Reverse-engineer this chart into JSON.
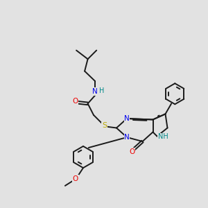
{
  "bg_color": "#e2e2e2",
  "bond_color": "#1a1a1a",
  "bond_width": 1.4,
  "N_color": "#0000ee",
  "O_color": "#ee0000",
  "S_color": "#bbaa00",
  "NH_color": "#008888",
  "figsize": [
    3.0,
    3.0
  ],
  "dpi": 100,
  "xlim": [
    0,
    10
  ],
  "ylim": [
    0,
    10
  ]
}
